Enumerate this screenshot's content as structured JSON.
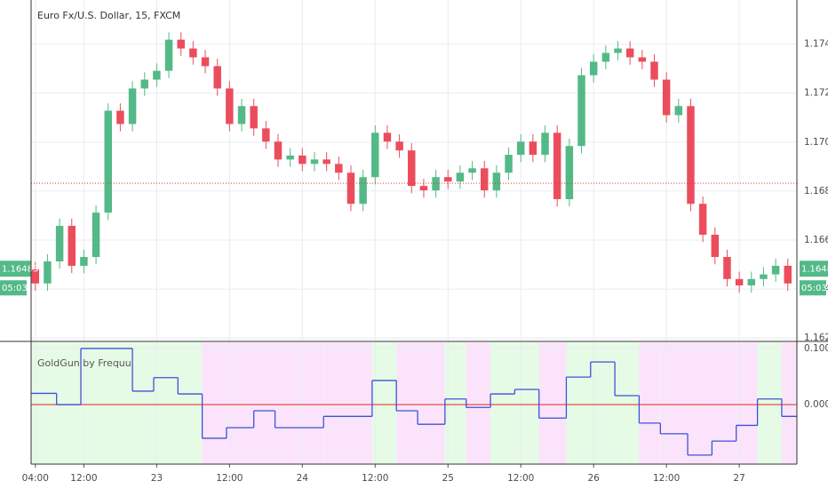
{
  "chart_data": [
    {
      "type": "candlestick",
      "title": "Euro Fx/U.S. Dollar, 15, FXCM",
      "up_color": "#53b987",
      "down_color": "#eb4d5c",
      "x": [
        0,
        2,
        4,
        6,
        8,
        10,
        12,
        14,
        16,
        18,
        20,
        22,
        24,
        26,
        28,
        30,
        32,
        34,
        36,
        38,
        40,
        42,
        44,
        46,
        48,
        50,
        52,
        54,
        56,
        58,
        60,
        62,
        64,
        66,
        68,
        70,
        72,
        74,
        76,
        78,
        80,
        82,
        84,
        86,
        88,
        90,
        92,
        94,
        96,
        98,
        100,
        102,
        104,
        106,
        108,
        110,
        112,
        114,
        116,
        118,
        120,
        122,
        124
      ],
      "open": [
        1.1648,
        1.16423,
        1.16513,
        1.16658,
        1.16495,
        1.16531,
        1.16712,
        1.17128,
        1.17074,
        1.17219,
        1.17255,
        1.17291,
        1.17418,
        1.17382,
        1.17346,
        1.1731,
        1.17219,
        1.17074,
        1.17147,
        1.17056,
        1.17002,
        1.16929,
        1.16945,
        1.16911,
        1.16929,
        1.16911,
        1.16875,
        1.16748,
        1.16857,
        1.17038,
        1.17002,
        1.16966,
        1.16821,
        1.16803,
        1.16857,
        1.16839,
        1.16875,
        1.16893,
        1.16803,
        1.16875,
        1.16948,
        1.17002,
        1.16948,
        1.17038,
        1.16767,
        1.16984,
        1.17273,
        1.17328,
        1.17364,
        1.17382,
        1.17346,
        1.17328,
        1.17255,
        1.1711,
        1.17147,
        1.16748,
        1.16622,
        1.16531,
        1.16441,
        1.16415,
        1.16441,
        1.1646,
        1.16495
      ],
      "high": [
        1.1651,
        1.16543,
        1.16688,
        1.16688,
        1.16561,
        1.16742,
        1.17158,
        1.17158,
        1.17249,
        1.17285,
        1.17321,
        1.17448,
        1.17448,
        1.17412,
        1.17376,
        1.1734,
        1.17249,
        1.17177,
        1.17177,
        1.17086,
        1.17032,
        1.16975,
        1.16975,
        1.16959,
        1.16959,
        1.16941,
        1.16905,
        1.16887,
        1.17068,
        1.17068,
        1.17032,
        1.16996,
        1.16851,
        1.16887,
        1.16887,
        1.16905,
        1.16923,
        1.16923,
        1.16905,
        1.16978,
        1.17032,
        1.17032,
        1.17068,
        1.17068,
        1.17014,
        1.17303,
        1.17358,
        1.17394,
        1.17412,
        1.17412,
        1.17376,
        1.17358,
        1.17285,
        1.17177,
        1.17177,
        1.16778,
        1.16652,
        1.16561,
        1.16471,
        1.16471,
        1.1649,
        1.16525,
        1.16525
      ],
      "low": [
        1.16393,
        1.16393,
        1.16483,
        1.16465,
        1.16465,
        1.16501,
        1.16682,
        1.17044,
        1.17044,
        1.17189,
        1.17225,
        1.17261,
        1.17352,
        1.17316,
        1.1728,
        1.17189,
        1.17044,
        1.17044,
        1.17026,
        1.16972,
        1.16899,
        1.16899,
        1.16881,
        1.16881,
        1.16881,
        1.16845,
        1.16718,
        1.16718,
        1.16827,
        1.16972,
        1.16936,
        1.16791,
        1.16773,
        1.16773,
        1.16809,
        1.16809,
        1.16845,
        1.16773,
        1.16773,
        1.16845,
        1.16918,
        1.16918,
        1.16918,
        1.16737,
        1.16737,
        1.16954,
        1.17243,
        1.17298,
        1.17334,
        1.17316,
        1.17298,
        1.17225,
        1.1708,
        1.1708,
        1.16718,
        1.16592,
        1.16501,
        1.16411,
        1.16385,
        1.16385,
        1.16411,
        1.1643,
        1.16393
      ],
      "close": [
        1.16423,
        1.16513,
        1.16658,
        1.16495,
        1.16531,
        1.16712,
        1.17128,
        1.17074,
        1.17219,
        1.17255,
        1.17291,
        1.17418,
        1.17382,
        1.17346,
        1.1731,
        1.17219,
        1.17074,
        1.17147,
        1.17056,
        1.17002,
        1.16929,
        1.16945,
        1.16911,
        1.16929,
        1.16911,
        1.16875,
        1.16748,
        1.16857,
        1.17038,
        1.17002,
        1.16966,
        1.16821,
        1.16803,
        1.16857,
        1.16839,
        1.16875,
        1.16893,
        1.16803,
        1.16875,
        1.16948,
        1.17002,
        1.16948,
        1.17038,
        1.16767,
        1.16984,
        1.17273,
        1.17328,
        1.17364,
        1.17382,
        1.17346,
        1.17328,
        1.17255,
        1.1711,
        1.17147,
        1.16748,
        1.16622,
        1.16531,
        1.16441,
        1.16415,
        1.16441,
        1.1646,
        1.16495,
        1.16423
      ],
      "xlim": [
        -0.7,
        125.5
      ],
      "ylim": [
        1.1619,
        1.1758
      ],
      "yticks": [
        {
          "value": 1.162,
          "label": "1.16200"
        },
        {
          "value": 1.164,
          "label": "1.16400"
        },
        {
          "value": 1.166,
          "label": "1.16600"
        },
        {
          "value": 1.168,
          "label": "1.16800"
        },
        {
          "value": 1.17,
          "label": "1.17000"
        },
        {
          "value": 1.172,
          "label": "1.17200"
        },
        {
          "value": 1.174,
          "label": "1.17400"
        }
      ],
      "hline": 1.16832,
      "hline_color": "#e53935",
      "last_price": 1.16483,
      "countdown": "05:03",
      "last_price_color": "#53b987",
      "grid": true
    },
    {
      "type": "step",
      "title": "GoldGun by Frequu",
      "x": [
        -0.7,
        3.5,
        7.5,
        16,
        19.5,
        23.5,
        27.5,
        31.5,
        36,
        39.5,
        47.5,
        55.5,
        59.5,
        63,
        67.5,
        71,
        75,
        79,
        83,
        87.5,
        91.5,
        95.5,
        99.5,
        103,
        107.5,
        111.5,
        115.5,
        119,
        123
      ],
      "values": [
        0.02,
        0.0,
        0.1,
        0.024,
        0.048,
        0.019,
        -0.06,
        -0.041,
        -0.011,
        -0.041,
        -0.021,
        0.043,
        -0.011,
        -0.035,
        0.01,
        -0.005,
        0.019,
        0.027,
        -0.024,
        0.049,
        0.076,
        0.016,
        -0.033,
        -0.052,
        -0.09,
        -0.065,
        -0.037,
        0.01,
        -0.021
      ],
      "color": "#3f51d6",
      "zero_color": "#e53935",
      "positive_zone": "#e6fbe6",
      "negative_zone": "#fbe4fb",
      "xlim": [
        -0.7,
        125.5
      ],
      "ylim": [
        -0.106,
        0.111
      ],
      "yticks": [
        {
          "value": 0,
          "label": "0.0000"
        },
        {
          "value": 0.1,
          "label": "0.1000"
        }
      ],
      "xticks": [
        {
          "value": 0,
          "label": "04:00"
        },
        {
          "value": 8,
          "label": "12:00"
        },
        {
          "value": 20,
          "label": "23"
        },
        {
          "value": 32,
          "label": "12:00"
        },
        {
          "value": 44,
          "label": "24"
        },
        {
          "value": 56,
          "label": "12:00"
        },
        {
          "value": 68,
          "label": "25"
        },
        {
          "value": 80,
          "label": "12:00"
        },
        {
          "value": 92,
          "label": "26"
        },
        {
          "value": 104,
          "label": "12:00"
        },
        {
          "value": 116,
          "label": "27"
        }
      ],
      "grid": true
    }
  ]
}
